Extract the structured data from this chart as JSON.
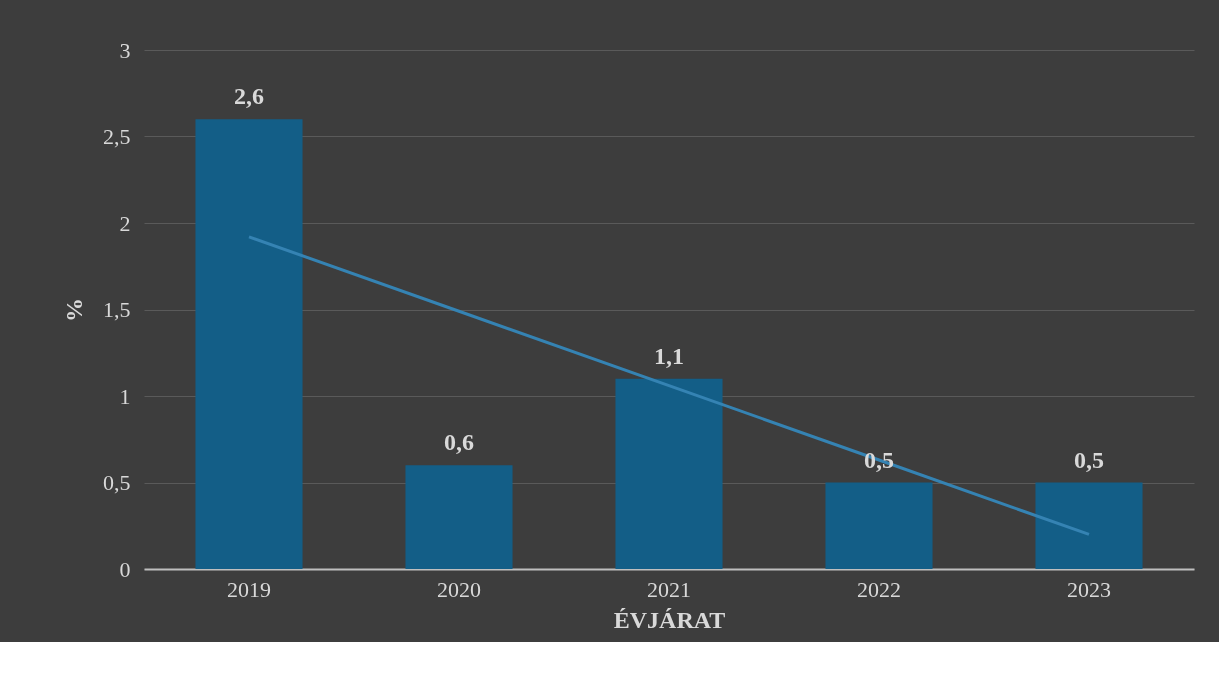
{
  "chart_data": {
    "type": "bar",
    "xlabel": "ÉVJÁRAT",
    "ylabel": "%",
    "categories": [
      "2019",
      "2020",
      "2021",
      "2022",
      "2023"
    ],
    "ylim": [
      0,
      3
    ],
    "yticks": [
      0,
      {
        "value": 0.5,
        "label": "0,5"
      },
      1,
      {
        "value": 1.5,
        "label": "1,5"
      },
      2,
      {
        "value": 2.5,
        "label": "2,5"
      },
      3
    ],
    "grid": "y",
    "series": [
      {
        "color": "#135e87",
        "values": [
          2.6,
          0.6,
          1.1,
          0.5,
          0.5
        ],
        "value_labels": [
          "2,6",
          "0,6",
          "1,1",
          "0,5",
          "0,5"
        ]
      },
      {
        "type": "line",
        "color": "#3583b3",
        "values": [
          1.92,
          1.49,
          1.06,
          0.63,
          0.2
        ]
      }
    ]
  }
}
